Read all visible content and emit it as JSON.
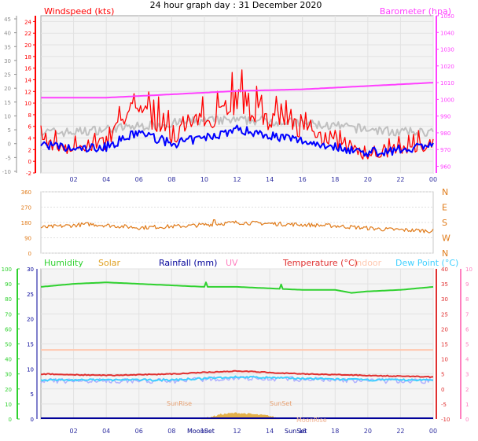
{
  "title": "24 hour graph day : 31 December 2020",
  "colors": {
    "wind_gust": "#ff0000",
    "wind_avg": "#c0c0c0",
    "wind_dir": "#0000ff",
    "barometer": "#ff40ff",
    "wind_bearing": "#e07b1a",
    "humidity": "#2fd12f",
    "solar": "#e0a020",
    "rainfall": "#000099",
    "uv": "#ff80c0",
    "temperature": "#e03030",
    "indoor": "#ffc8b0",
    "dew_point": "#40d0ff",
    "dew_point_band": "#b0b0ff",
    "wind_frame_grid": "#dcdcdc",
    "gridline": "#ffffff"
  },
  "chart_data": [
    {
      "id": "wind_baro",
      "type": "line",
      "left_label": "Windspeed (kts)",
      "right_label": "Barometer (hpa)",
      "x_ticks": [
        "02",
        "04",
        "06",
        "08",
        "10",
        "12",
        "14",
        "16",
        "18",
        "20",
        "22",
        "00"
      ],
      "y_left_ticks": [
        "24",
        "22",
        "20",
        "18",
        "16",
        "14",
        "12",
        "10",
        "8",
        "6",
        "4",
        "2",
        "0",
        "-2"
      ],
      "y_outer_ticks": [
        "45",
        "40",
        "35",
        "30",
        "25",
        "20",
        "15",
        "10",
        "5",
        "0",
        "-5",
        "-10"
      ],
      "y_right_ticks": [
        "1050",
        "1040",
        "1030",
        "1020",
        "1010",
        "1000",
        "990",
        "980",
        "970",
        "960"
      ],
      "ylim_left": [
        -2,
        25
      ],
      "ylim_right": [
        956,
        1050
      ],
      "series": [
        {
          "name": "Barometer (hpa)",
          "axis": "right",
          "x": [
            0,
            4,
            8,
            12,
            16,
            20,
            24
          ],
          "values": [
            1001,
            1001,
            1003,
            1005,
            1006,
            1008,
            1010
          ]
        },
        {
          "name": "Windspeed (kts)",
          "axis": "left",
          "x": [
            0,
            2,
            4,
            6,
            8,
            10,
            12,
            14,
            16,
            18,
            20,
            22,
            24
          ],
          "values": [
            3,
            2,
            2.5,
            5,
            3,
            4,
            5.5,
            4.5,
            3.5,
            2.5,
            1.5,
            2,
            3
          ]
        },
        {
          "name": "gust",
          "axis": "left",
          "x": [
            0,
            2,
            4,
            6,
            8,
            10,
            12,
            14,
            16,
            18,
            20,
            22,
            24
          ],
          "values": [
            5,
            4,
            5,
            10,
            6,
            8,
            11,
            8,
            7,
            5,
            3,
            4,
            5
          ]
        },
        {
          "name": "average",
          "axis": "left",
          "x": [
            0,
            2,
            4,
            6,
            8,
            10,
            12,
            14,
            16,
            18,
            20,
            22,
            24
          ],
          "values": [
            5,
            5,
            5.5,
            6,
            6.5,
            7,
            7,
            7,
            6.5,
            6,
            5.5,
            5,
            5
          ]
        }
      ]
    },
    {
      "id": "direction",
      "type": "line",
      "y_left_ticks": [
        "360",
        "270",
        "180",
        "90",
        "0"
      ],
      "y_right_ticks": [
        "N",
        "W",
        "S",
        "E",
        "N"
      ],
      "ylim": [
        0,
        360
      ],
      "series": [
        {
          "name": "Wind direction",
          "x": [
            0,
            3,
            6,
            9,
            12,
            15,
            18,
            21,
            24
          ],
          "values": [
            150,
            170,
            150,
            160,
            180,
            170,
            160,
            140,
            130
          ]
        }
      ]
    },
    {
      "id": "temp_hum",
      "type": "line",
      "legend": [
        "Humidity",
        "Solar",
        "Rainfall (mm)",
        "UV",
        "Temperature (°C)",
        "Indoor",
        "Dew Point (°C)"
      ],
      "x_ticks": [
        "02",
        "04",
        "06",
        "08",
        "10",
        "12",
        "14",
        "16",
        "18",
        "20",
        "22",
        "00"
      ],
      "y_humidity_ticks": [
        "100",
        "90",
        "80",
        "70",
        "60",
        "50",
        "40",
        "30",
        "20",
        "10",
        "0"
      ],
      "y_rain_ticks": [
        "30",
        "25",
        "20",
        "15",
        "10",
        "5",
        "0"
      ],
      "y_temp_ticks": [
        "40",
        "35",
        "30",
        "25",
        "20",
        "15",
        "10",
        "5",
        "0",
        "-5",
        "-10"
      ],
      "y_uv_ticks": [
        "10",
        "9",
        "8",
        "7",
        "6",
        "5",
        "4",
        "3",
        "2",
        "1",
        "0"
      ],
      "ylim_temp": [
        -10,
        40
      ],
      "ylim_humidity": [
        0,
        100
      ],
      "annotations": [
        "SunRise",
        "SunSet",
        "MoonSet",
        "SunSet",
        "MoonRise"
      ],
      "series": [
        {
          "name": "Humidity",
          "axis": "humidity",
          "x": [
            0,
            2,
            4,
            6,
            8,
            10,
            12,
            14,
            16,
            18,
            19,
            20,
            22,
            24
          ],
          "values": [
            88,
            90,
            91,
            90,
            89,
            88,
            88,
            87,
            86,
            86,
            84,
            85,
            86,
            88
          ]
        },
        {
          "name": "Indoor",
          "axis": "temp",
          "x": [
            0,
            6,
            12,
            18,
            24
          ],
          "values": [
            13,
            13,
            13,
            13,
            13
          ]
        },
        {
          "name": "Temperature (°C)",
          "axis": "temp",
          "x": [
            0,
            4,
            8,
            12,
            16,
            20,
            24
          ],
          "values": [
            5,
            4.5,
            5,
            6,
            5,
            4.5,
            4
          ]
        },
        {
          "name": "Dew Point (°C)",
          "axis": "temp",
          "x": [
            0,
            4,
            8,
            12,
            16,
            20,
            24
          ],
          "values": [
            3,
            3,
            3,
            4,
            3.5,
            3,
            3
          ]
        },
        {
          "name": "Solar",
          "axis": "humidity",
          "x": [
            9.8,
            10.5,
            11,
            11.5,
            12,
            12.5,
            13,
            14,
            14.6
          ],
          "values": [
            0,
            1.5,
            3,
            3.5,
            4,
            3.5,
            3,
            2,
            0
          ]
        }
      ]
    }
  ]
}
